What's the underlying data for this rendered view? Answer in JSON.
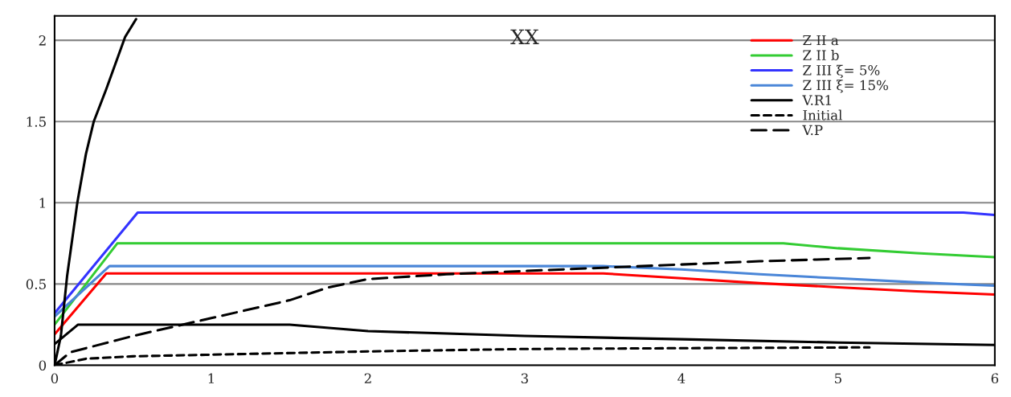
{
  "chart_data": {
    "type": "line",
    "title": "XX",
    "xlim": [
      0,
      6
    ],
    "ylim": [
      0,
      2.15
    ],
    "xticks": [
      0,
      1,
      2,
      3,
      4,
      5,
      6
    ],
    "yticks": [
      0,
      0.5,
      1,
      1.5,
      2
    ],
    "grid": "y",
    "legend": "top right",
    "series": [
      {
        "name": "Z II a",
        "color": "#ff0000",
        "line_style": "solid",
        "x": [
          0,
          0.33,
          3.5,
          4,
          4.5,
          5,
          5.5,
          6
        ],
        "values": [
          0.19,
          0.565,
          0.565,
          0.535,
          0.505,
          0.48,
          0.455,
          0.435
        ]
      },
      {
        "name": "Z II b",
        "color": "#33cc33",
        "line_style": "solid",
        "x": [
          0,
          0.4,
          4.65,
          5,
          5.5,
          6
        ],
        "values": [
          0.25,
          0.75,
          0.75,
          0.72,
          0.69,
          0.665
        ]
      },
      {
        "name": "Z III ξ= 5%",
        "color": "#3333ff",
        "line_style": "solid",
        "x": [
          0,
          0.53,
          5.8,
          6
        ],
        "values": [
          0.32,
          0.94,
          0.94,
          0.925
        ]
      },
      {
        "name": "Z III ξ= 15%",
        "color": "#4a86d8",
        "line_style": "solid",
        "x": [
          0,
          0.35,
          3.5,
          4,
          4.5,
          5,
          5.5,
          6
        ],
        "values": [
          0.3,
          0.61,
          0.61,
          0.59,
          0.56,
          0.535,
          0.51,
          0.49
        ]
      },
      {
        "name": "V.R1",
        "color": "#000000",
        "line_style": "solid",
        "x": [
          0,
          0.04,
          0.08,
          0.145,
          0.2,
          0.25,
          0.33,
          0.45,
          0.52
        ],
        "values": [
          0,
          0.18,
          0.55,
          1.0,
          1.3,
          1.5,
          1.7,
          2.02,
          2.13
        ]
      },
      {
        "name": "Initial",
        "color": "#000000",
        "line_style": "dotted",
        "x": [
          0,
          0.2,
          0.5,
          1,
          2,
          3,
          4,
          5.2
        ],
        "values": [
          0,
          0.04,
          0.055,
          0.065,
          0.085,
          0.1,
          0.105,
          0.11
        ]
      },
      {
        "name": "V.P",
        "color": "#000000",
        "line_style": "dashed",
        "x": [
          0,
          0.1,
          0.5,
          1,
          1.5,
          1.75,
          2,
          2.5,
          3,
          3.5,
          4,
          4.5,
          5.2
        ],
        "values": [
          0,
          0.08,
          0.18,
          0.29,
          0.4,
          0.48,
          0.53,
          0.56,
          0.58,
          0.6,
          0.62,
          0.64,
          0.66
        ]
      },
      {
        "color": "#000000",
        "line_style": "solid",
        "x": [
          0,
          0.15,
          1.5,
          2,
          3,
          4,
          5,
          6
        ],
        "values": [
          0.13,
          0.25,
          0.25,
          0.21,
          0.18,
          0.16,
          0.14,
          0.125
        ]
      }
    ]
  }
}
